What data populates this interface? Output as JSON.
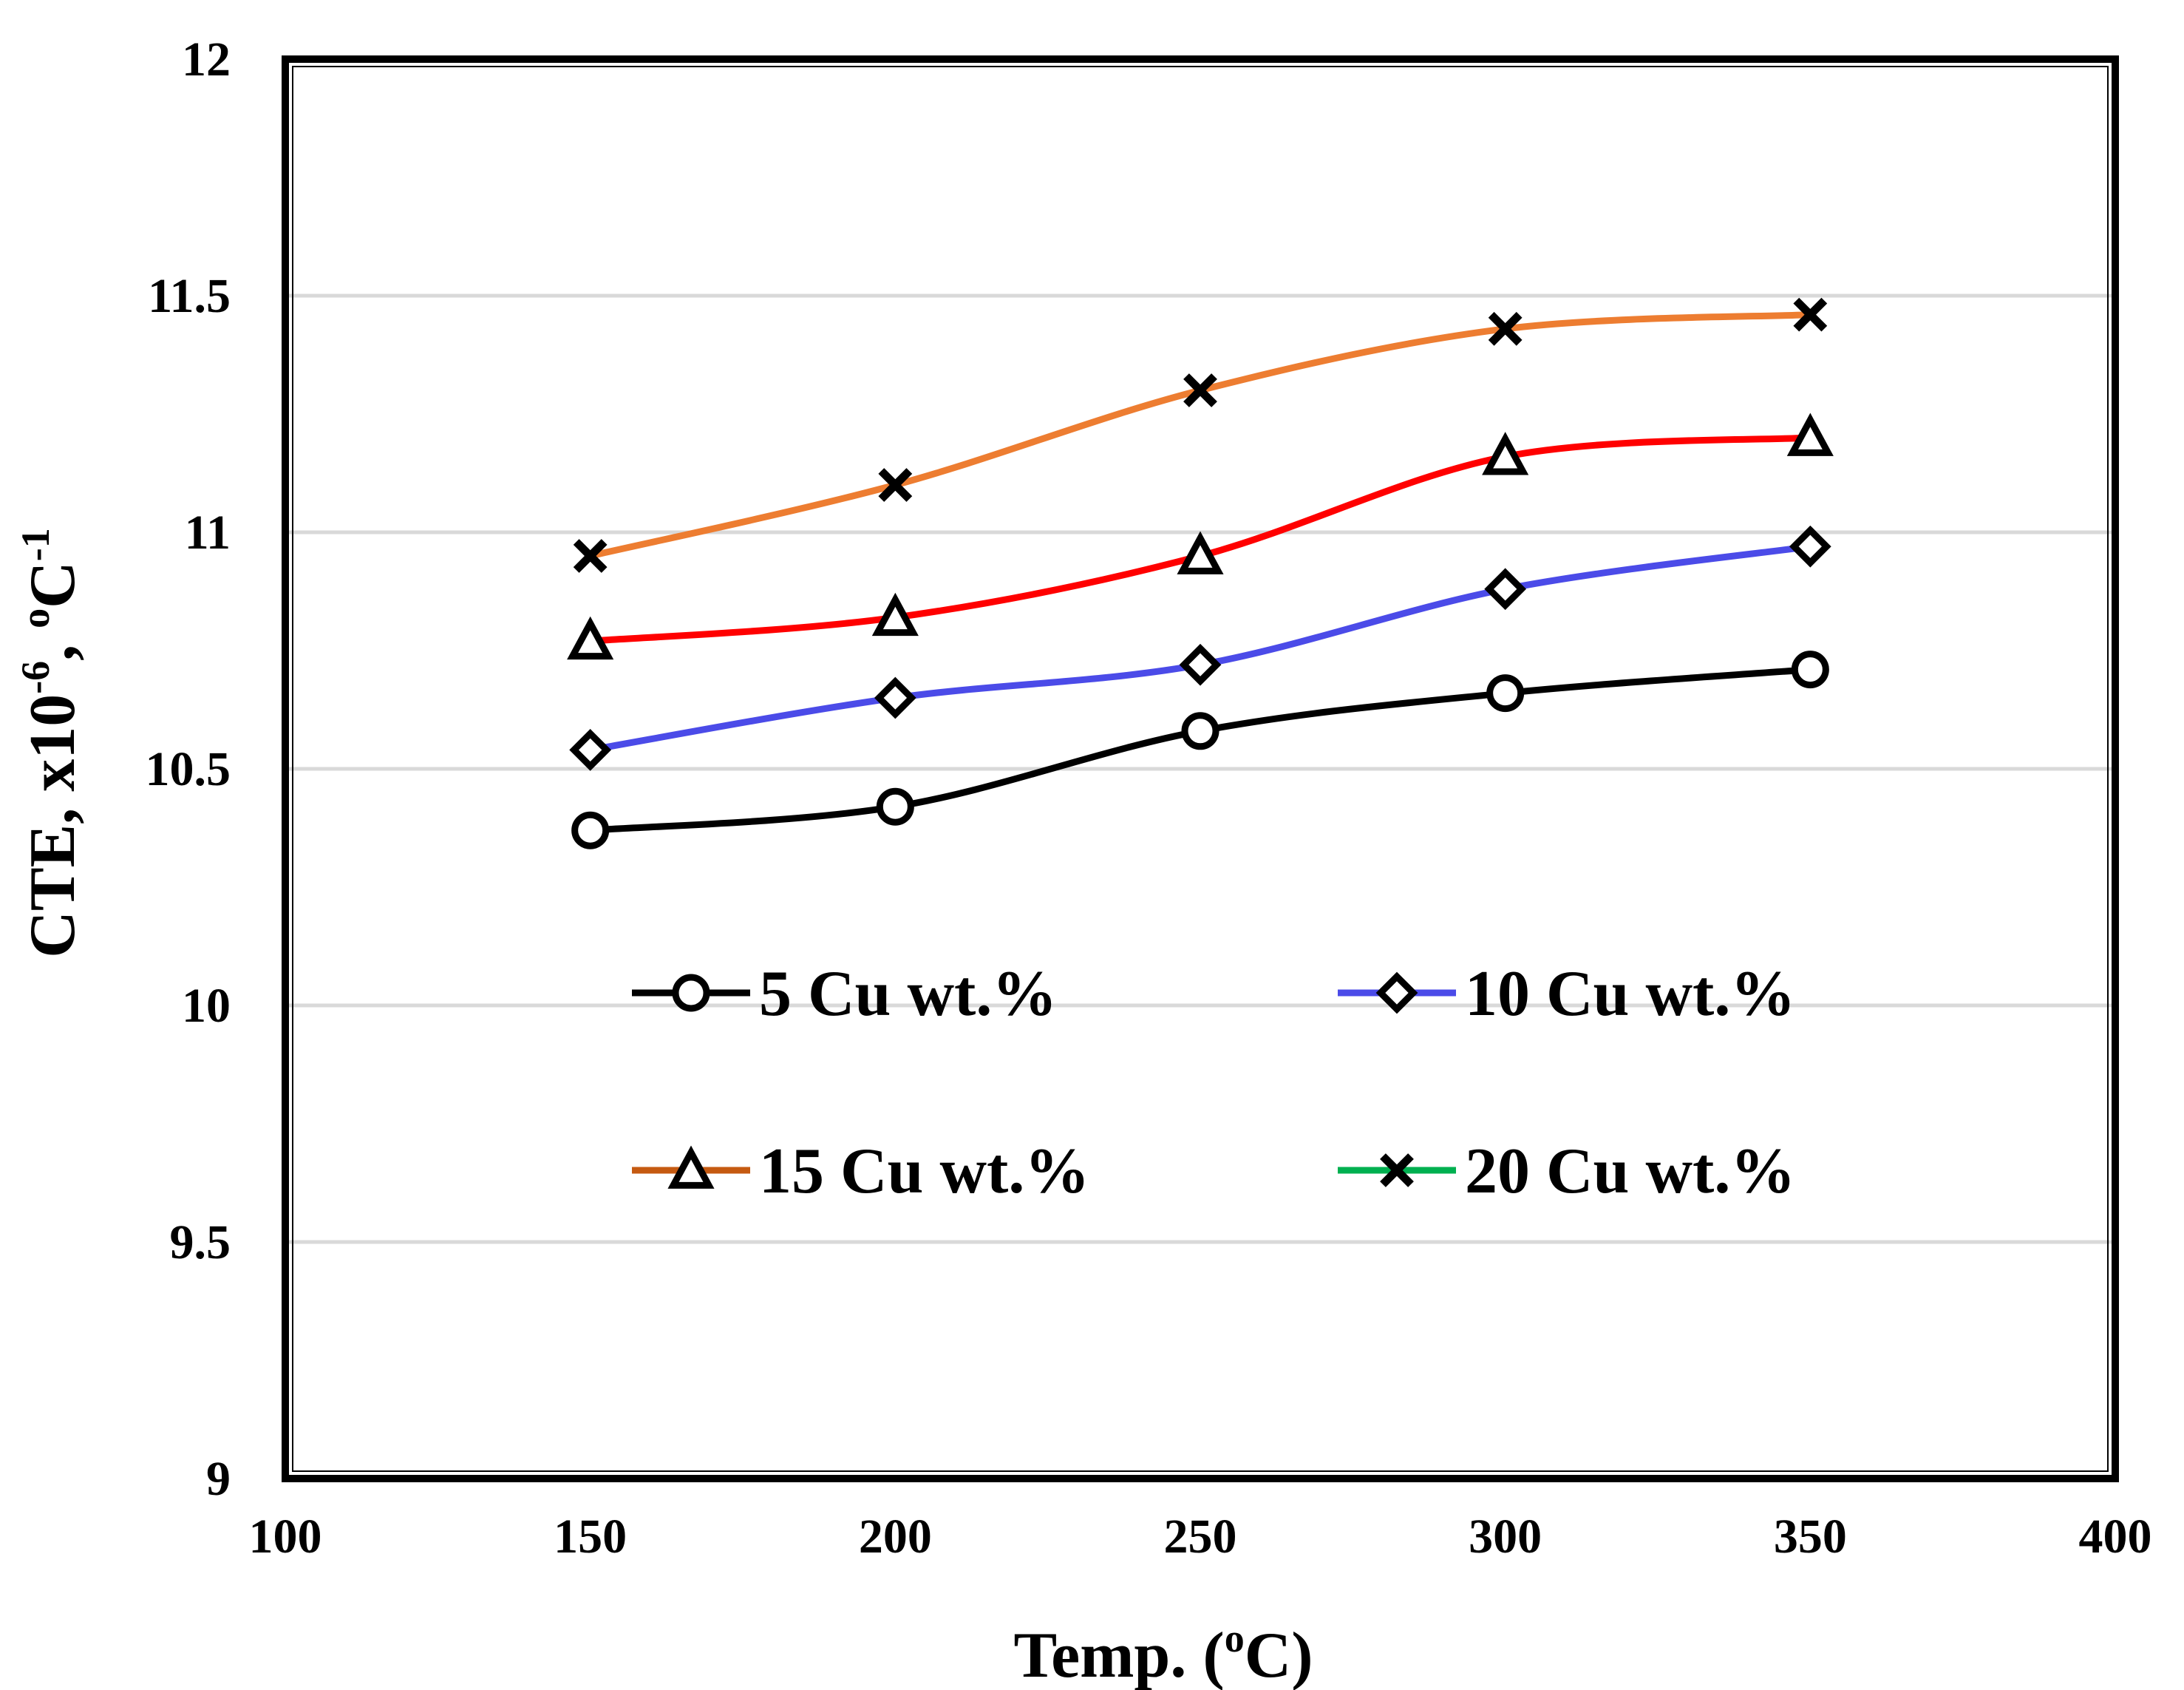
{
  "chart_data": {
    "type": "line",
    "title": "",
    "xlabel": "Temp. (",
    "xlabel_sup": "o",
    "xlabel_end": "C)",
    "ylabel_parts": [
      "CTE, x10",
      "-6",
      ", ",
      "o",
      "C",
      "-1"
    ],
    "xlim": [
      100,
      400
    ],
    "ylim": [
      9,
      12
    ],
    "x_ticks": [
      100,
      150,
      200,
      250,
      300,
      350,
      400
    ],
    "y_ticks": [
      9,
      9.5,
      10,
      10.5,
      11,
      11.5,
      12
    ],
    "x_tick_labels": [
      "100",
      "150",
      "200",
      "250",
      "300",
      "350",
      "400"
    ],
    "y_tick_labels": [
      "9",
      "9.5",
      "10",
      "10.5",
      "11",
      "11.5",
      "12"
    ],
    "grid": true,
    "legend_position": "inside-bottom",
    "x": [
      150,
      200,
      250,
      300,
      350
    ],
    "series": [
      {
        "name": "5 Cu wt.%",
        "values": [
          10.37,
          10.42,
          10.58,
          10.66,
          10.71
        ],
        "line_color": "#000000",
        "legend_line_color": "#000000",
        "marker": "circle"
      },
      {
        "name": "10 Cu wt.%",
        "values": [
          10.54,
          10.65,
          10.72,
          10.88,
          10.97
        ],
        "line_color": "#4b4be8",
        "legend_line_color": "#4b4be8",
        "marker": "diamond"
      },
      {
        "name": "15 Cu wt.%",
        "values": [
          10.77,
          10.82,
          10.95,
          11.16,
          11.2
        ],
        "line_color": "#ff0000",
        "legend_line_color": "#c55a11",
        "marker": "triangle"
      },
      {
        "name": "20 Cu wt.%",
        "values": [
          10.95,
          11.1,
          11.3,
          11.43,
          11.46
        ],
        "line_color": "#ed7d31",
        "legend_line_color": "#00b050",
        "marker": "x"
      }
    ]
  }
}
